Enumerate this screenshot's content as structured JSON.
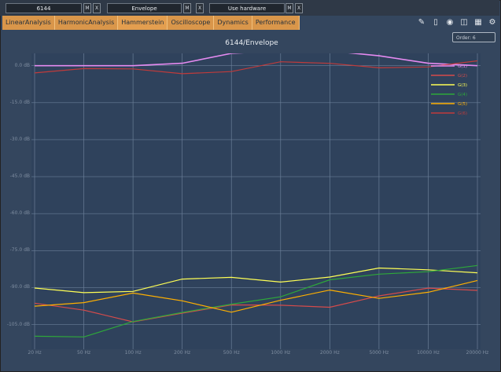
{
  "top_bar": {
    "field1": "6144",
    "field2": "Envelope",
    "field3": "Use hardware",
    "buttons": [
      "M",
      "X",
      "M",
      "X",
      "M",
      "X"
    ]
  },
  "tabs": [
    "LinearAnalysis",
    "HarmonicAnalysis",
    "Hammerstein",
    "Oscilloscope",
    "Dynamics",
    "Performance"
  ],
  "toolbar": {
    "icons": [
      "edit-icon",
      "book-icon",
      "eye-icon",
      "camera-icon",
      "data-icon",
      "settings-icon"
    ]
  },
  "chart_panel": {
    "title": "6144/Envelope",
    "order_label": "Order: 6"
  },
  "chart_data": {
    "type": "line",
    "y_ticks": [
      "0.0 dB",
      "-15.0 dB",
      "-30.0 dB",
      "-45.0 dB",
      "-60.0 dB",
      "-75.0 dB",
      "-90.0 dB",
      "-105.0 dB"
    ],
    "x_ticks": [
      "20 Hz",
      "50 Hz",
      "100 Hz",
      "200 Hz",
      "500 Hz",
      "1000 Hz",
      "2000 Hz",
      "5000 Hz",
      "10000 Hz",
      "20000 Hz"
    ],
    "legend": [
      "G(1)",
      "G(2)",
      "G(3)",
      "G(4)",
      "G(5)",
      "G(6)"
    ],
    "series_colors": [
      "#e58af0",
      "#d64b4b",
      "#ffff55",
      "#2ea83a",
      "#ffb000",
      "#c03b3b"
    ],
    "series": [
      {
        "name": "G(1)",
        "values": [
          0,
          0,
          0,
          1,
          5,
          6,
          6,
          4,
          1,
          0
        ]
      },
      {
        "name": "G(2)",
        "values": [
          -98,
          -100,
          -102,
          -100,
          -99,
          -97,
          -96,
          -94,
          -92,
          -90
        ]
      },
      {
        "name": "G(3)",
        "values": [
          -92,
          -91,
          -90,
          -88,
          -87,
          -86,
          -85,
          -84,
          -83,
          -82
        ]
      },
      {
        "name": "G(4)",
        "values": [
          -110,
          -108,
          -104,
          -102,
          -96,
          -92,
          -88,
          -86,
          -82,
          -80
        ]
      },
      {
        "name": "G(5)",
        "values": [
          -96,
          -95,
          -94,
          -96,
          -98,
          -95,
          -93,
          -94,
          -90,
          -88
        ]
      },
      {
        "name": "G(6)",
        "values": [
          -1,
          -2,
          -3,
          -2,
          -1,
          0,
          0,
          1,
          0,
          0
        ]
      }
    ],
    "ylim": [
      -115,
      5
    ],
    "xscale": "log",
    "grid": true,
    "legend_position": "top-right"
  }
}
